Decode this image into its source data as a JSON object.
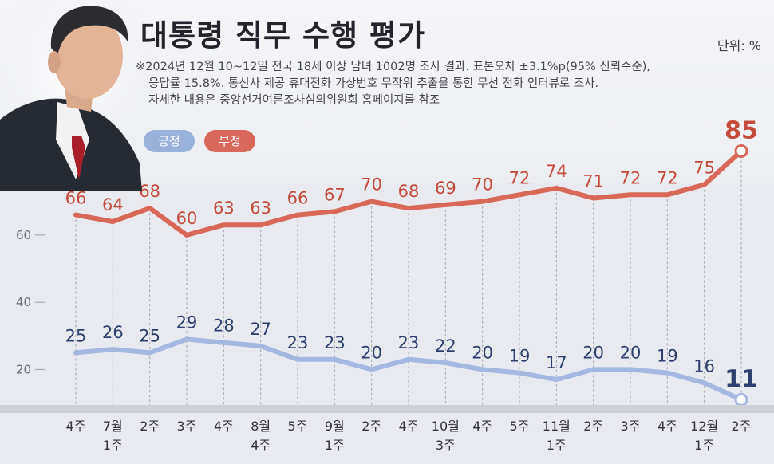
{
  "title": "대통령 직무 수행 평가",
  "unit": "단위: %",
  "note": {
    "line1": "※2024년 12월 10~12일 전국 18세 이상 남녀 1002명 조사 결과. 표본오차 ±3.1%p(95% 신뢰수준),",
    "line2": "응답률 15.8%. 통신사 제공 휴대전화 가상번호 무작위 추출을 통한 무선 전화 인터뷰로 조사.",
    "line3": "자세한 내용은 중앙선거여론조사심의위원회 홈페이지를 참조"
  },
  "colors": {
    "positive": "#a4b8e0",
    "negative": "#d9675a",
    "positive_text": "#2d3f6e",
    "negative_text": "#c44a3b",
    "grid": "#9fa3ad",
    "bottom_bar": "#cfd0d6"
  },
  "chart_data": {
    "type": "line",
    "categories": [
      "4주",
      "7월\n1주",
      "2주",
      "3주",
      "4주",
      "8월\n4주",
      "5주",
      "9월\n1주",
      "2주",
      "4주",
      "10월\n3주",
      "4주",
      "5주",
      "11월\n1주",
      "2주",
      "3주",
      "4주",
      "12월\n1주",
      "2주"
    ],
    "series": [
      {
        "name": "긍정",
        "color": "#a4b8e0",
        "values": [
          25,
          26,
          25,
          29,
          28,
          27,
          23,
          23,
          20,
          23,
          22,
          20,
          19,
          17,
          20,
          20,
          19,
          16,
          11
        ]
      },
      {
        "name": "부정",
        "color": "#d9675a",
        "values": [
          66,
          64,
          68,
          60,
          63,
          63,
          66,
          67,
          70,
          68,
          69,
          70,
          72,
          74,
          71,
          72,
          72,
          75,
          85
        ]
      }
    ],
    "y_ticks": [
      20,
      40,
      60,
      80
    ],
    "ylim": [
      8,
      92
    ],
    "grid": "vertical dashed",
    "legend": "top-left",
    "highlight_last_point": true
  }
}
